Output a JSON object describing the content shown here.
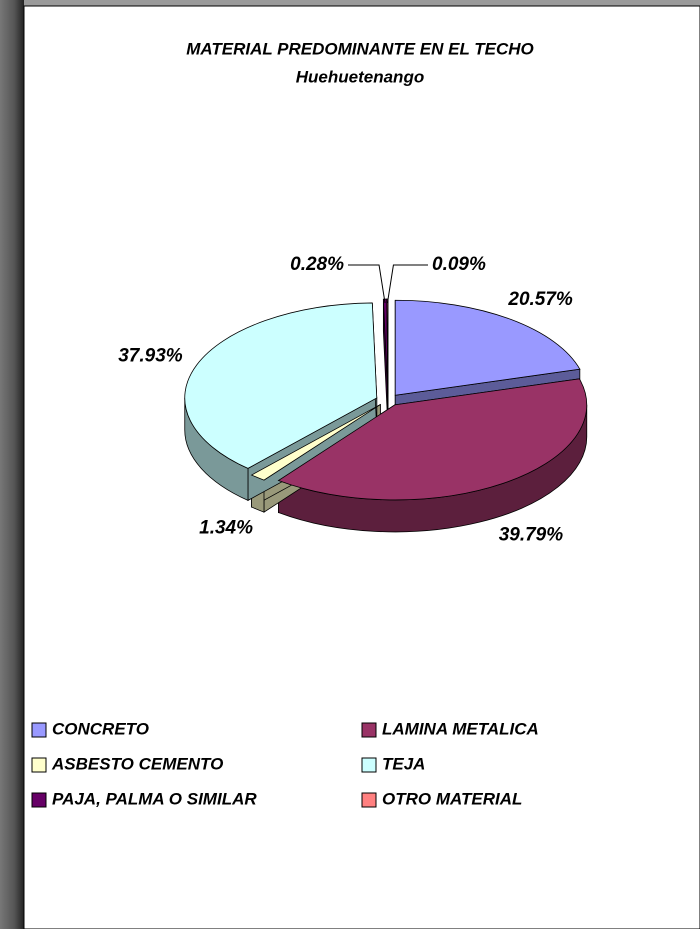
{
  "chart_data": {
    "type": "pie",
    "title": "MATERIAL PREDOMINANTE EN EL TECHO",
    "subtitle": "Huehuetenango",
    "categories": [
      "CONCRETO",
      "LAMINA METALICA",
      "ASBESTO CEMENTO",
      "TEJA",
      "PAJA, PALMA O SIMILAR",
      "OTRO MATERIAL"
    ],
    "values": [
      20.57,
      39.79,
      1.34,
      37.93,
      0.28,
      0.09
    ],
    "value_labels": [
      "20.57%",
      "39.79%",
      "1.34%",
      "37.93%",
      "0.28%",
      "0.09%"
    ],
    "colors": [
      "#9999ff",
      "#993366",
      "#ffffcc",
      "#ccffff",
      "#660066",
      "#ff8080"
    ],
    "legend": "bottom"
  }
}
